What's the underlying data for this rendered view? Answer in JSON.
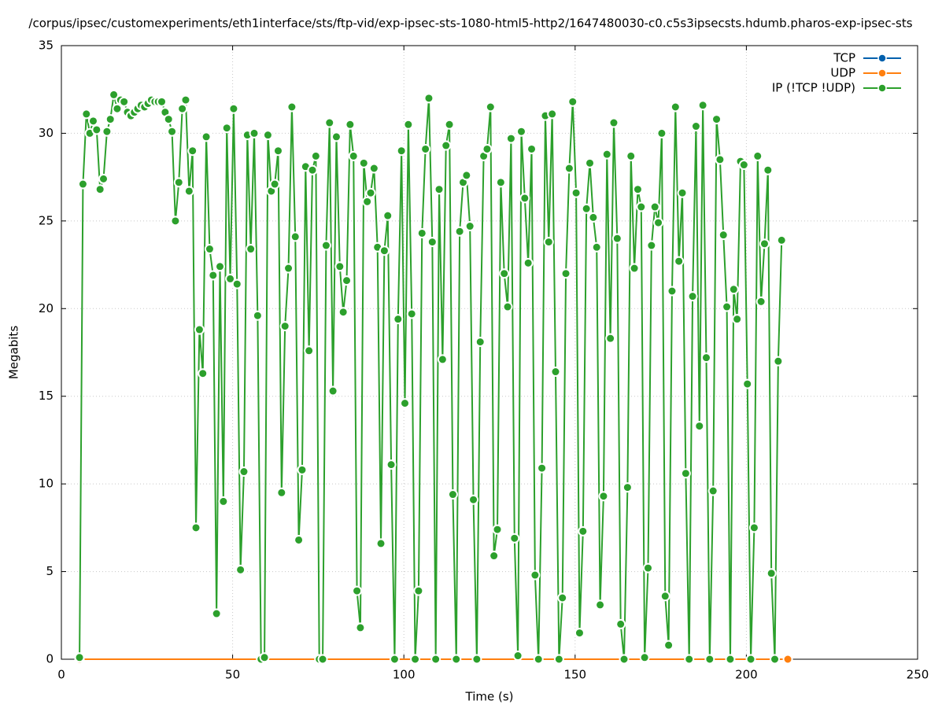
{
  "chart_data": {
    "type": "line",
    "title": "/corpus/ipsec/customexperiments/eth1interface/sts/ftp-vid/exp-ipsec-sts-1080-html5-http2/1647480030-c0.c5s3ipsecsts.hdumb.pharos-exp-ipsec-sts",
    "x_label": "Time (s)",
    "y_label": "Megabits",
    "xlim": [
      0,
      250
    ],
    "xticks": [
      0,
      50,
      100,
      150,
      200,
      250
    ],
    "ylim": [
      0,
      35
    ],
    "yticks": [
      0,
      5,
      10,
      15,
      20,
      25,
      30,
      35
    ],
    "grid": true,
    "legend": "top-right",
    "series": [
      {
        "name": "TCP",
        "color": "#0060ad",
        "x": [
          5.3,
          212.1
        ],
        "values": [
          0,
          0
        ]
      },
      {
        "name": "UDP",
        "color": "#ff7f0e",
        "x": [
          5.3,
          212.1
        ],
        "values": [
          0,
          0
        ]
      },
      {
        "name": "IP (!TCP  !UDP)",
        "color": "#2ca02c",
        "x": [
          5.3,
          6.3,
          7.3,
          8.3,
          9.3,
          10.3,
          11.3,
          12.3,
          13.3,
          14.3,
          15.3,
          16.3,
          17.3,
          18.3,
          19.3,
          20.3,
          21.3,
          22.3,
          23.3,
          24.3,
          25.3,
          26.3,
          27.3,
          28.3,
          29.3,
          30.3,
          31.3,
          32.3,
          33.3,
          34.3,
          35.3,
          36.3,
          37.3,
          38.3,
          39.3,
          40.3,
          41.3,
          42.3,
          43.3,
          44.3,
          45.3,
          46.3,
          47.3,
          48.3,
          49.3,
          50.3,
          51.3,
          52.3,
          53.3,
          54.3,
          55.3,
          56.3,
          57.3,
          58.3,
          59.3,
          60.3,
          61.3,
          62.3,
          63.3,
          64.3,
          65.3,
          66.3,
          67.3,
          68.3,
          69.3,
          70.3,
          71.3,
          72.3,
          73.3,
          74.3,
          75.3,
          76.3,
          77.3,
          78.3,
          79.3,
          80.3,
          81.3,
          82.3,
          83.3,
          84.3,
          85.3,
          86.3,
          87.3,
          88.3,
          89.3,
          90.3,
          91.3,
          92.3,
          93.3,
          94.3,
          95.3,
          96.3,
          97.3,
          98.3,
          99.3,
          100.3,
          101.3,
          102.3,
          103.3,
          104.3,
          105.3,
          106.3,
          107.3,
          108.3,
          109.3,
          110.3,
          111.3,
          112.3,
          113.3,
          114.3,
          115.3,
          116.3,
          117.3,
          118.3,
          119.3,
          120.3,
          121.3,
          122.3,
          123.3,
          124.3,
          125.3,
          126.3,
          127.3,
          128.3,
          129.3,
          130.3,
          131.3,
          132.3,
          133.3,
          134.3,
          135.3,
          136.3,
          137.3,
          138.3,
          139.3,
          140.3,
          141.3,
          142.3,
          143.3,
          144.3,
          145.3,
          146.3,
          147.3,
          148.3,
          149.3,
          150.3,
          151.3,
          152.3,
          153.3,
          154.3,
          155.3,
          156.3,
          157.3,
          158.3,
          159.3,
          160.3,
          161.3,
          162.3,
          163.3,
          164.3,
          165.3,
          166.3,
          167.3,
          168.3,
          169.3,
          170.3,
          171.3,
          172.3,
          173.3,
          174.3,
          175.3,
          176.3,
          177.3,
          178.3,
          179.3,
          180.3,
          181.3,
          182.3,
          183.3,
          184.3,
          185.3,
          186.3,
          187.3,
          188.3,
          189.3,
          190.3,
          191.3,
          192.3,
          193.3,
          194.3,
          195.3,
          196.3,
          197.3,
          198.3,
          199.3,
          200.3,
          201.3,
          202.3,
          203.3,
          204.3,
          205.3,
          206.3,
          207.3,
          208.3,
          209.3,
          210.3
        ],
        "values": [
          0.1,
          27.1,
          31.1,
          30.0,
          30.7,
          30.2,
          26.8,
          27.4,
          30.1,
          30.8,
          32.2,
          31.4,
          31.9,
          31.8,
          31.2,
          31.0,
          31.2,
          31.4,
          31.6,
          31.5,
          31.7,
          31.9,
          31.8,
          31.8,
          31.8,
          31.2,
          30.8,
          30.1,
          25.0,
          27.2,
          31.4,
          31.9,
          26.7,
          29.0,
          7.5,
          18.8,
          16.3,
          29.8,
          23.4,
          21.9,
          2.6,
          22.4,
          9.0,
          30.3,
          21.7,
          31.4,
          21.4,
          5.1,
          10.7,
          29.9,
          23.4,
          30.0,
          19.6,
          0,
          0.1,
          29.9,
          26.7,
          27.1,
          29.0,
          9.5,
          19.0,
          22.3,
          31.5,
          24.1,
          6.8,
          10.8,
          28.1,
          17.6,
          27.9,
          28.7,
          0,
          0,
          23.6,
          30.6,
          15.3,
          29.8,
          22.4,
          19.8,
          21.6,
          30.5,
          28.7,
          3.9,
          1.8,
          28.3,
          26.1,
          26.6,
          28.0,
          23.5,
          6.6,
          23.3,
          25.3,
          11.1,
          0,
          19.4,
          29.0,
          14.6,
          30.5,
          19.7,
          0,
          3.9,
          24.3,
          29.1,
          32.0,
          23.8,
          0,
          26.8,
          17.1,
          29.3,
          30.5,
          9.4,
          0,
          24.4,
          27.2,
          27.6,
          24.7,
          9.1,
          0,
          18.1,
          28.7,
          29.1,
          31.5,
          5.9,
          7.4,
          27.2,
          22.0,
          20.1,
          29.7,
          6.9,
          0.2,
          30.1,
          26.3,
          22.6,
          29.1,
          4.8,
          0,
          10.9,
          31.0,
          23.8,
          31.1,
          16.4,
          0,
          3.5,
          22.0,
          28.0,
          31.8,
          26.6,
          1.5,
          7.3,
          25.7,
          28.3,
          25.2,
          23.5,
          3.1,
          9.3,
          28.8,
          18.3,
          30.6,
          24.0,
          2.0,
          0,
          9.8,
          28.7,
          22.3,
          26.8,
          25.8,
          0.1,
          5.2,
          23.6,
          25.8,
          24.9,
          30.0,
          3.6,
          0.8,
          21.0,
          31.5,
          22.7,
          26.6,
          10.6,
          0,
          20.7,
          30.4,
          13.3,
          31.6,
          17.2,
          0,
          9.6,
          30.8,
          28.5,
          24.2,
          20.1,
          0,
          21.1,
          19.4,
          28.4,
          28.2,
          15.7,
          0,
          7.5,
          28.7,
          20.4,
          23.7,
          27.9,
          4.9,
          0,
          17.0,
          23.9
        ]
      }
    ]
  }
}
